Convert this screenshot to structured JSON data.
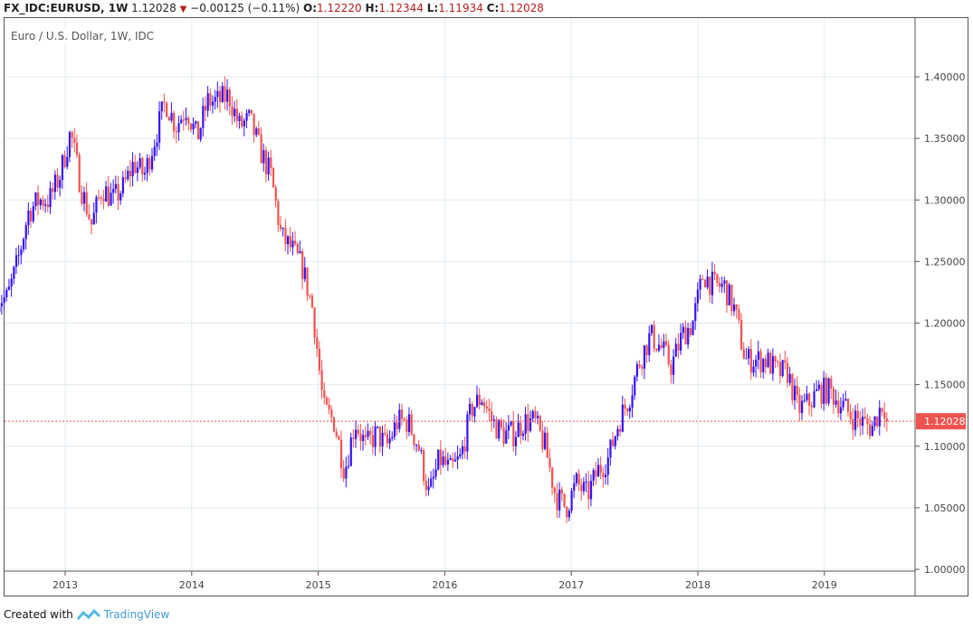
{
  "header": {
    "symbol": "FX_IDC:EURUSD, 1W",
    "last": "1.12028",
    "direction_icon": "triangle-down",
    "change": "−0.00125 (−0.11%)",
    "open_label": "O:",
    "open": "1.12220",
    "high_label": "H:",
    "high": "1.12344",
    "low_label": "L:",
    "low": "1.11934",
    "close_label": "C:",
    "close": "1.12028"
  },
  "footer": {
    "created_with": "Created with",
    "brand": "TradingView"
  },
  "colors": {
    "up": "#3412ff",
    "down": "#ef5350",
    "grid": "#e1ecf2",
    "last_price": "#ef5350"
  },
  "chart_data": {
    "type": "candlestick",
    "title": "Euro / U.S. Dollar, 1W, IDC",
    "interval": "weekly",
    "y_ticks": [
      "1.40000",
      "1.35000",
      "1.30000",
      "1.25000",
      "1.20000",
      "1.15000",
      "1.10000",
      "1.05000",
      "1.00000"
    ],
    "ylim": [
      1.0,
      1.4
    ],
    "x_ticks": [
      "2013",
      "2014",
      "2015",
      "2016",
      "2017",
      "2018",
      "2019"
    ],
    "last_price_label": "1.12028",
    "start": 2012.46,
    "end": 2019.51,
    "monthly_closes_approx": {
      "2012": [
        null,
        null,
        null,
        null,
        null,
        null,
        1.22,
        1.25,
        1.29,
        1.3,
        1.3,
        1.32
      ],
      "2013": [
        1.355,
        1.31,
        1.28,
        1.31,
        1.3,
        1.31,
        1.33,
        1.32,
        1.35,
        1.38,
        1.36,
        1.375
      ],
      "2014": [
        1.35,
        1.38,
        1.38,
        1.385,
        1.36,
        1.365,
        1.34,
        1.32,
        1.27,
        1.26,
        1.245,
        1.21
      ],
      "2015": [
        1.13,
        1.12,
        1.08,
        1.12,
        1.1,
        1.11,
        1.1,
        1.12,
        1.12,
        1.1,
        1.06,
        1.09
      ],
      "2016": [
        1.08,
        1.09,
        1.13,
        1.14,
        1.12,
        1.11,
        1.11,
        1.12,
        1.12,
        1.1,
        1.06,
        1.05
      ],
      "2017": [
        1.07,
        1.06,
        1.08,
        1.09,
        1.12,
        1.14,
        1.17,
        1.19,
        1.18,
        1.165,
        1.19,
        1.2
      ],
      "2018": [
        1.24,
        1.23,
        1.23,
        1.21,
        1.17,
        1.17,
        1.17,
        1.16,
        1.16,
        1.13,
        1.135,
        1.145
      ],
      "2019": [
        1.145,
        1.135,
        1.125,
        1.12,
        1.115,
        1.135,
        1.12028
      ]
    }
  }
}
